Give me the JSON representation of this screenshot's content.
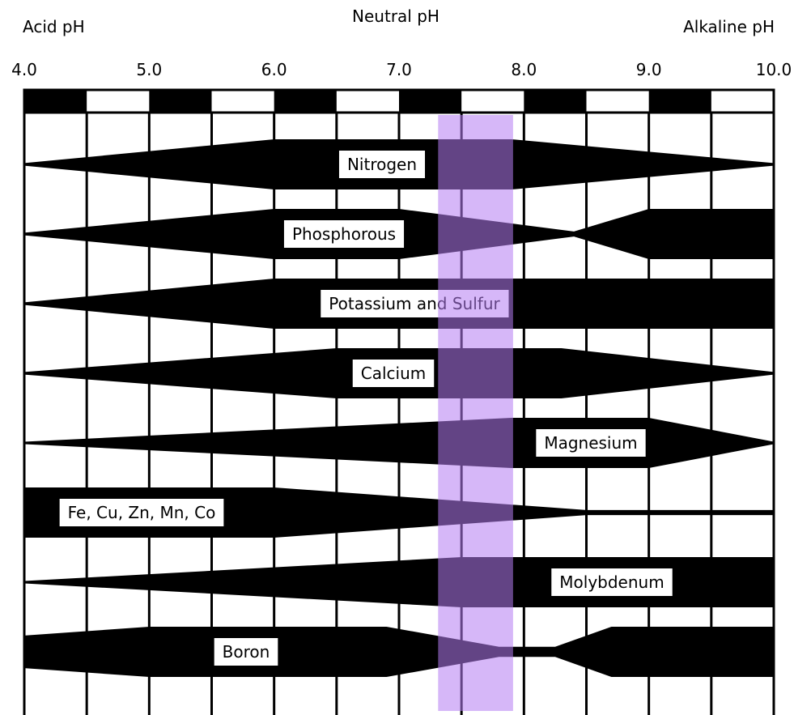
{
  "headers": {
    "acid": "Acid pH",
    "neutral": "Neutral pH",
    "alkaline": "Alkaline pH"
  },
  "ph_ticks": [
    "4.0",
    "5.0",
    "6.0",
    "7.0",
    "8.0",
    "9.0",
    "10.0"
  ],
  "highlight": {
    "ph_range": [
      7.3,
      7.9
    ],
    "color": "#b57cf2"
  },
  "nutrients": [
    {
      "label": "Nitrogen",
      "profile": [
        [
          4.0,
          0.05
        ],
        [
          6.0,
          1.0
        ],
        [
          7.9,
          1.0
        ],
        [
          10.0,
          0.05
        ]
      ]
    },
    {
      "label": "Phosphorous",
      "profile": [
        [
          4.0,
          0.05
        ],
        [
          6.0,
          1.0
        ],
        [
          7.0,
          1.0
        ],
        [
          8.4,
          0.1
        ],
        [
          9.0,
          1.0
        ],
        [
          10.0,
          1.0
        ]
      ]
    },
    {
      "label": "Potassium and Sulfur",
      "profile": [
        [
          4.0,
          0.05
        ],
        [
          6.0,
          1.0
        ],
        [
          10.0,
          1.0
        ]
      ]
    },
    {
      "label": "Calcium",
      "profile": [
        [
          4.0,
          0.05
        ],
        [
          6.5,
          1.0
        ],
        [
          8.3,
          1.0
        ],
        [
          10.0,
          0.05
        ]
      ]
    },
    {
      "label": "Magnesium",
      "profile": [
        [
          4.0,
          0.05
        ],
        [
          7.9,
          1.0
        ],
        [
          9.0,
          1.0
        ],
        [
          10.0,
          0.05
        ]
      ]
    },
    {
      "label": "Fe, Cu, Zn, Mn, Co",
      "profile": [
        [
          4.0,
          1.0
        ],
        [
          6.0,
          1.0
        ],
        [
          8.5,
          0.1
        ],
        [
          10.0,
          0.1
        ]
      ]
    },
    {
      "label": "Molybdenum",
      "profile": [
        [
          4.0,
          0.05
        ],
        [
          7.5,
          1.0
        ],
        [
          10.0,
          1.0
        ]
      ]
    },
    {
      "label": "Boron",
      "profile": [
        [
          4.0,
          0.65
        ],
        [
          5.0,
          1.0
        ],
        [
          6.9,
          1.0
        ],
        [
          7.8,
          0.2
        ],
        [
          8.25,
          0.2
        ],
        [
          8.7,
          1.0
        ],
        [
          10.0,
          1.0
        ]
      ]
    }
  ]
}
